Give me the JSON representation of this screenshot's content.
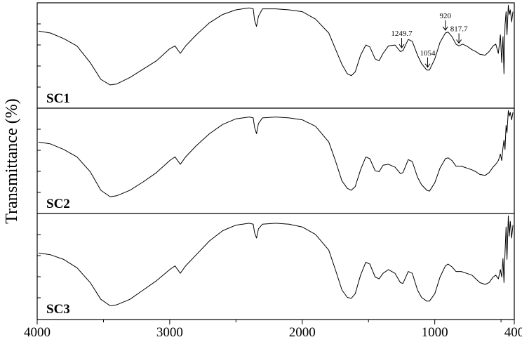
{
  "chart_data": {
    "type": "line",
    "title": "",
    "xlabel": "",
    "ylabel": "Transmittance (%)",
    "xlim": [
      4000,
      400
    ],
    "x_ticks": [
      "4000",
      "3000",
      "2000",
      "1000",
      "400"
    ],
    "x_tick_values": [
      4000,
      3000,
      2000,
      1000,
      400
    ],
    "grid": false,
    "legend": "none",
    "line_color": "#000000",
    "series": [
      {
        "name": "SC1",
        "points": [
          [
            3990,
            0.74
          ],
          [
            3900,
            0.72
          ],
          [
            3800,
            0.66
          ],
          [
            3700,
            0.58
          ],
          [
            3600,
            0.4
          ],
          [
            3520,
            0.22
          ],
          [
            3450,
            0.16
          ],
          [
            3400,
            0.17
          ],
          [
            3300,
            0.24
          ],
          [
            3200,
            0.33
          ],
          [
            3100,
            0.42
          ],
          [
            3000,
            0.55
          ],
          [
            2960,
            0.58
          ],
          [
            2920,
            0.5
          ],
          [
            2880,
            0.58
          ],
          [
            2800,
            0.7
          ],
          [
            2700,
            0.83
          ],
          [
            2600,
            0.92
          ],
          [
            2500,
            0.97
          ],
          [
            2400,
            0.99
          ],
          [
            2370,
            0.98
          ],
          [
            2360,
            0.86
          ],
          [
            2345,
            0.79
          ],
          [
            2330,
            0.9
          ],
          [
            2300,
            0.98
          ],
          [
            2200,
            0.98
          ],
          [
            2100,
            0.97
          ],
          [
            2000,
            0.95
          ],
          [
            1900,
            0.87
          ],
          [
            1800,
            0.72
          ],
          [
            1750,
            0.55
          ],
          [
            1700,
            0.38
          ],
          [
            1660,
            0.28
          ],
          [
            1630,
            0.26
          ],
          [
            1600,
            0.3
          ],
          [
            1560,
            0.48
          ],
          [
            1520,
            0.59
          ],
          [
            1490,
            0.57
          ],
          [
            1450,
            0.44
          ],
          [
            1420,
            0.42
          ],
          [
            1390,
            0.5
          ],
          [
            1350,
            0.58
          ],
          [
            1300,
            0.59
          ],
          [
            1260,
            0.52
          ],
          [
            1240,
            0.53
          ],
          [
            1200,
            0.65
          ],
          [
            1170,
            0.63
          ],
          [
            1130,
            0.48
          ],
          [
            1100,
            0.39
          ],
          [
            1060,
            0.32
          ],
          [
            1040,
            0.32
          ],
          [
            1000,
            0.44
          ],
          [
            960,
            0.62
          ],
          [
            920,
            0.72
          ],
          [
            900,
            0.73
          ],
          [
            870,
            0.68
          ],
          [
            840,
            0.6
          ],
          [
            817,
            0.58
          ],
          [
            790,
            0.6
          ],
          [
            760,
            0.58
          ],
          [
            720,
            0.54
          ],
          [
            690,
            0.52
          ],
          [
            660,
            0.49
          ],
          [
            620,
            0.48
          ],
          [
            590,
            0.52
          ],
          [
            560,
            0.58
          ],
          [
            540,
            0.6
          ],
          [
            520,
            0.5
          ],
          [
            505,
            0.7
          ],
          [
            495,
            0.4
          ],
          [
            485,
            0.68
          ],
          [
            478,
            0.28
          ],
          [
            470,
            0.8
          ],
          [
            462,
            0.95
          ],
          [
            455,
            0.7
          ],
          [
            445,
            1.02
          ],
          [
            438,
            0.92
          ],
          [
            430,
            0.97
          ],
          [
            420,
            0.84
          ],
          [
            410,
            0.95
          ]
        ],
        "annotations": [
          {
            "text": "1249.7",
            "x": 1249.7
          },
          {
            "text": "1054",
            "x": 1054
          },
          {
            "text": "920",
            "x": 920
          },
          {
            "text": "817.7",
            "x": 817.7
          }
        ]
      },
      {
        "name": "SC2",
        "points": [
          [
            3990,
            0.68
          ],
          [
            3900,
            0.66
          ],
          [
            3800,
            0.6
          ],
          [
            3700,
            0.52
          ],
          [
            3600,
            0.36
          ],
          [
            3520,
            0.16
          ],
          [
            3450,
            0.09
          ],
          [
            3400,
            0.1
          ],
          [
            3300,
            0.16
          ],
          [
            3200,
            0.25
          ],
          [
            3100,
            0.35
          ],
          [
            3000,
            0.48
          ],
          [
            2960,
            0.52
          ],
          [
            2920,
            0.44
          ],
          [
            2880,
            0.52
          ],
          [
            2800,
            0.64
          ],
          [
            2700,
            0.77
          ],
          [
            2600,
            0.87
          ],
          [
            2500,
            0.93
          ],
          [
            2400,
            0.95
          ],
          [
            2370,
            0.94
          ],
          [
            2360,
            0.84
          ],
          [
            2345,
            0.77
          ],
          [
            2330,
            0.88
          ],
          [
            2300,
            0.94
          ],
          [
            2200,
            0.95
          ],
          [
            2100,
            0.94
          ],
          [
            2000,
            0.92
          ],
          [
            1900,
            0.85
          ],
          [
            1800,
            0.68
          ],
          [
            1750,
            0.48
          ],
          [
            1700,
            0.26
          ],
          [
            1660,
            0.18
          ],
          [
            1630,
            0.16
          ],
          [
            1600,
            0.2
          ],
          [
            1560,
            0.38
          ],
          [
            1520,
            0.52
          ],
          [
            1490,
            0.5
          ],
          [
            1450,
            0.37
          ],
          [
            1420,
            0.36
          ],
          [
            1390,
            0.43
          ],
          [
            1350,
            0.44
          ],
          [
            1300,
            0.41
          ],
          [
            1260,
            0.34
          ],
          [
            1240,
            0.35
          ],
          [
            1200,
            0.49
          ],
          [
            1170,
            0.47
          ],
          [
            1130,
            0.3
          ],
          [
            1100,
            0.22
          ],
          [
            1060,
            0.16
          ],
          [
            1040,
            0.15
          ],
          [
            1000,
            0.24
          ],
          [
            960,
            0.4
          ],
          [
            920,
            0.5
          ],
          [
            900,
            0.51
          ],
          [
            870,
            0.48
          ],
          [
            840,
            0.42
          ],
          [
            800,
            0.42
          ],
          [
            760,
            0.4
          ],
          [
            720,
            0.38
          ],
          [
            690,
            0.36
          ],
          [
            660,
            0.33
          ],
          [
            620,
            0.32
          ],
          [
            590,
            0.35
          ],
          [
            560,
            0.41
          ],
          [
            540,
            0.44
          ],
          [
            520,
            0.48
          ],
          [
            505,
            0.55
          ],
          [
            495,
            0.48
          ],
          [
            485,
            0.62
          ],
          [
            478,
            0.7
          ],
          [
            470,
            0.6
          ],
          [
            462,
            0.86
          ],
          [
            455,
            0.78
          ],
          [
            445,
            1.02
          ],
          [
            438,
            0.96
          ],
          [
            430,
            1.0
          ],
          [
            420,
            0.92
          ],
          [
            410,
            1.0
          ]
        ]
      },
      {
        "name": "SC3",
        "points": [
          [
            3990,
            0.62
          ],
          [
            3900,
            0.6
          ],
          [
            3800,
            0.55
          ],
          [
            3700,
            0.46
          ],
          [
            3600,
            0.3
          ],
          [
            3520,
            0.12
          ],
          [
            3450,
            0.05
          ],
          [
            3400,
            0.06
          ],
          [
            3300,
            0.12
          ],
          [
            3200,
            0.22
          ],
          [
            3100,
            0.32
          ],
          [
            3000,
            0.44
          ],
          [
            2960,
            0.48
          ],
          [
            2920,
            0.4
          ],
          [
            2880,
            0.48
          ],
          [
            2800,
            0.6
          ],
          [
            2700,
            0.75
          ],
          [
            2600,
            0.86
          ],
          [
            2500,
            0.92
          ],
          [
            2400,
            0.94
          ],
          [
            2370,
            0.93
          ],
          [
            2360,
            0.84
          ],
          [
            2345,
            0.78
          ],
          [
            2330,
            0.88
          ],
          [
            2300,
            0.93
          ],
          [
            2200,
            0.94
          ],
          [
            2100,
            0.93
          ],
          [
            2000,
            0.9
          ],
          [
            1900,
            0.82
          ],
          [
            1800,
            0.65
          ],
          [
            1750,
            0.44
          ],
          [
            1700,
            0.22
          ],
          [
            1660,
            0.14
          ],
          [
            1630,
            0.13
          ],
          [
            1600,
            0.18
          ],
          [
            1560,
            0.38
          ],
          [
            1520,
            0.52
          ],
          [
            1490,
            0.5
          ],
          [
            1450,
            0.36
          ],
          [
            1420,
            0.34
          ],
          [
            1390,
            0.4
          ],
          [
            1350,
            0.44
          ],
          [
            1300,
            0.4
          ],
          [
            1260,
            0.3
          ],
          [
            1240,
            0.29
          ],
          [
            1200,
            0.42
          ],
          [
            1170,
            0.4
          ],
          [
            1130,
            0.22
          ],
          [
            1100,
            0.14
          ],
          [
            1060,
            0.1
          ],
          [
            1040,
            0.1
          ],
          [
            1000,
            0.18
          ],
          [
            960,
            0.36
          ],
          [
            920,
            0.48
          ],
          [
            900,
            0.5
          ],
          [
            870,
            0.47
          ],
          [
            840,
            0.42
          ],
          [
            800,
            0.42
          ],
          [
            760,
            0.4
          ],
          [
            720,
            0.38
          ],
          [
            690,
            0.34
          ],
          [
            660,
            0.3
          ],
          [
            620,
            0.28
          ],
          [
            590,
            0.3
          ],
          [
            560,
            0.36
          ],
          [
            540,
            0.38
          ],
          [
            520,
            0.34
          ],
          [
            505,
            0.44
          ],
          [
            495,
            0.36
          ],
          [
            485,
            0.56
          ],
          [
            478,
            0.3
          ],
          [
            470,
            0.62
          ],
          [
            462,
            0.9
          ],
          [
            455,
            0.55
          ],
          [
            445,
            1.02
          ],
          [
            438,
            0.8
          ],
          [
            430,
            0.96
          ],
          [
            420,
            0.78
          ],
          [
            410,
            0.92
          ]
        ]
      }
    ]
  }
}
